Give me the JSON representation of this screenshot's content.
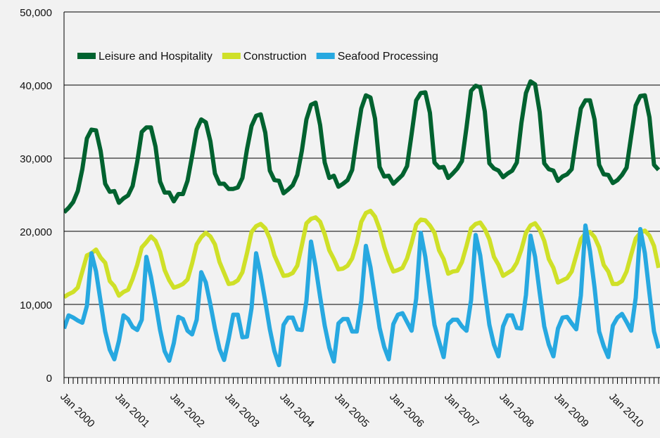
{
  "chart_data": {
    "type": "line",
    "title": "",
    "xlabel": "",
    "ylabel": "",
    "ylim": [
      0,
      50000
    ],
    "yticks": [
      0,
      10000,
      20000,
      30000,
      40000,
      50000
    ],
    "y_tick_labels": [
      "0",
      "10,000",
      "20,000",
      "30,000",
      "40,000",
      "50,000"
    ],
    "x_tick_labels": [
      "Jan 2000",
      "Jan 2001",
      "Jan 2002",
      "Jan 2003",
      "Jan 2004",
      "Jan 2005",
      "Jan 2006",
      "Jan 2007",
      "Jan 2008",
      "Jan 2009",
      "Jan 2010"
    ],
    "x_start": "2000-01",
    "grid": "horizontal",
    "legend_position": "top-left",
    "series": [
      {
        "name": "Leisure and Hospitality",
        "color": "#00622f",
        "values": [
          22600,
          23200,
          24000,
          25500,
          28500,
          32700,
          33900,
          33800,
          31000,
          26500,
          25400,
          25500,
          23900,
          24500,
          24900,
          26200,
          29500,
          33600,
          34200,
          34200,
          31600,
          26800,
          25300,
          25300,
          24100,
          25100,
          25100,
          26900,
          30300,
          33900,
          35300,
          34900,
          32300,
          27900,
          26500,
          26500,
          25800,
          25800,
          26000,
          27300,
          31200,
          34400,
          35800,
          36000,
          33500,
          28300,
          27000,
          26900,
          25200,
          25700,
          26300,
          27700,
          31000,
          35300,
          37300,
          37600,
          34500,
          29400,
          27300,
          27600,
          26100,
          26500,
          27000,
          28400,
          32800,
          36800,
          38600,
          38300,
          35400,
          28800,
          27500,
          27600,
          26500,
          27100,
          27700,
          28900,
          33300,
          37900,
          38900,
          39000,
          36200,
          29400,
          28700,
          28800,
          27300,
          27900,
          28600,
          29600,
          34200,
          39200,
          39900,
          39700,
          36400,
          29300,
          28600,
          28300,
          27400,
          27900,
          28300,
          29400,
          34800,
          38900,
          40500,
          40100,
          36300,
          29300,
          28500,
          28300,
          26900,
          27500,
          27800,
          28500,
          32800,
          36800,
          37900,
          37900,
          35300,
          29100,
          27800,
          27700,
          26600,
          27000,
          27700,
          28700,
          33000,
          37200,
          38500,
          38600,
          35600,
          29100,
          28400
        ]
      },
      {
        "name": "Construction",
        "color": "#cfe028",
        "values": [
          11000,
          11400,
          11700,
          12300,
          14500,
          16700,
          17000,
          17500,
          16400,
          15700,
          13200,
          12500,
          11200,
          11700,
          12000,
          13500,
          15400,
          17800,
          18500,
          19300,
          18700,
          17200,
          14700,
          13300,
          12300,
          12500,
          12800,
          13400,
          15600,
          18200,
          19200,
          19800,
          19300,
          18200,
          15800,
          14300,
          12800,
          12900,
          13300,
          14400,
          17000,
          19900,
          20700,
          21000,
          20400,
          19000,
          16700,
          15300,
          13900,
          14000,
          14300,
          15300,
          18100,
          21100,
          21700,
          21900,
          21300,
          19600,
          17400,
          16200,
          14800,
          14900,
          15300,
          16300,
          18400,
          21300,
          22500,
          22800,
          22000,
          20300,
          17900,
          16000,
          14500,
          14700,
          15000,
          16300,
          18400,
          20900,
          21600,
          21500,
          20800,
          19800,
          17400,
          16200,
          14200,
          14500,
          14600,
          15800,
          18000,
          20400,
          21000,
          21200,
          20300,
          18900,
          16500,
          15400,
          13900,
          14300,
          14700,
          15700,
          17500,
          19800,
          20800,
          21100,
          20200,
          18700,
          16200,
          15000,
          13000,
          13300,
          13600,
          14500,
          16700,
          18900,
          19700,
          19900,
          19200,
          17800,
          15400,
          14500,
          12800,
          12800,
          13200,
          14500,
          16800,
          19000,
          19800,
          20100,
          19400,
          18000,
          15000
        ]
      },
      {
        "name": "Seafood Processing",
        "color": "#27a8e0",
        "values": [
          6700,
          8500,
          8200,
          7800,
          7500,
          9800,
          17000,
          14500,
          10400,
          6300,
          3800,
          2500,
          5000,
          8500,
          8000,
          6900,
          6500,
          7900,
          16500,
          13800,
          10300,
          6500,
          3600,
          2300,
          4700,
          8300,
          8000,
          6400,
          5900,
          7900,
          14400,
          13000,
          10000,
          6700,
          3900,
          2400,
          5300,
          8600,
          8600,
          5500,
          5600,
          9500,
          17000,
          14000,
          10400,
          6600,
          3600,
          1700,
          7200,
          8200,
          8200,
          6600,
          6500,
          10500,
          18600,
          15200,
          11000,
          7100,
          4100,
          2200,
          7400,
          8000,
          8000,
          6300,
          6300,
          10500,
          18000,
          15100,
          10900,
          6800,
          4200,
          2500,
          7300,
          8600,
          8800,
          7600,
          6400,
          10800,
          19800,
          16500,
          11700,
          7200,
          4900,
          2800,
          7300,
          7900,
          7900,
          7000,
          6400,
          10600,
          19500,
          16700,
          11800,
          7200,
          4500,
          2900,
          7000,
          8500,
          8500,
          6800,
          6700,
          11300,
          19400,
          16500,
          11600,
          7000,
          4500,
          2900,
          6700,
          8200,
          8300,
          7400,
          6600,
          11200,
          20800,
          17300,
          12300,
          6300,
          4300,
          2800,
          7100,
          8200,
          8700,
          7600,
          6400,
          10900,
          20300,
          17000,
          11500,
          6300,
          4000
        ]
      }
    ]
  }
}
